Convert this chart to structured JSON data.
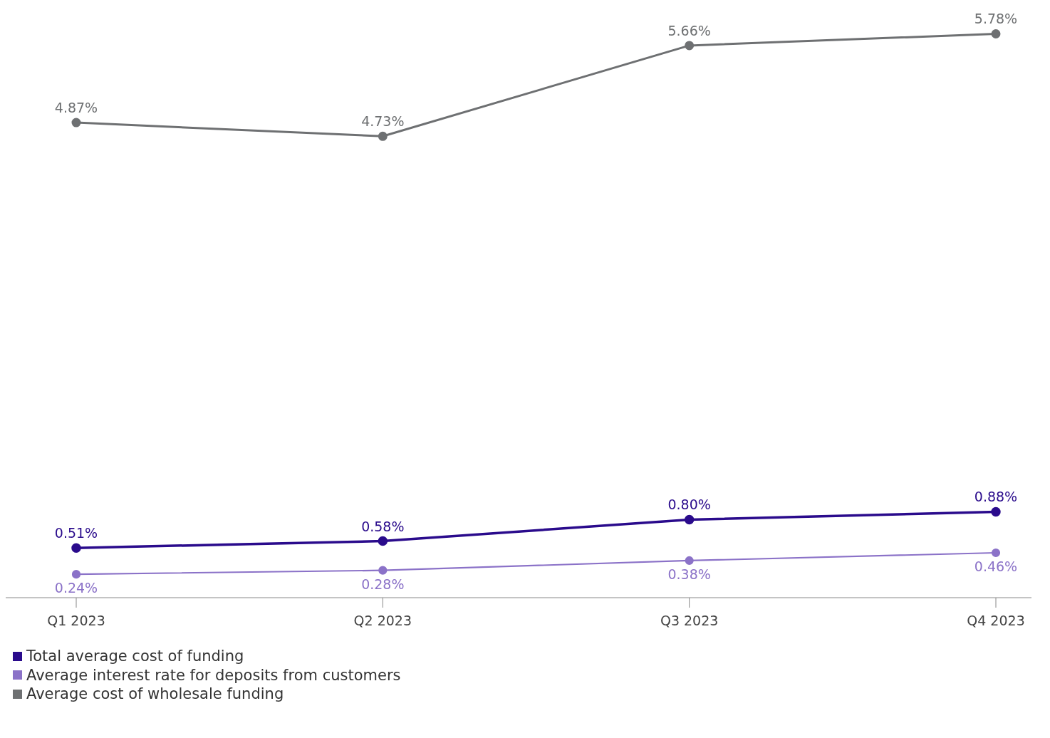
{
  "chart_data": {
    "type": "line",
    "categories": [
      "Q1 2023",
      "Q2 2023",
      "Q3 2023",
      "Q4 2023"
    ],
    "series": [
      {
        "name": "Total average cost of funding",
        "color": "#2a0b8c",
        "values": [
          0.51,
          0.58,
          0.8,
          0.88
        ],
        "value_labels": [
          "0.51%",
          "0.58%",
          "0.80%",
          "0.88%"
        ]
      },
      {
        "name": "Average interest rate for deposits from customers",
        "color": "#8b72c8",
        "values": [
          0.24,
          0.28,
          0.38,
          0.46
        ],
        "value_labels": [
          "0.24%",
          "0.28%",
          "0.38%",
          "0.46%"
        ]
      },
      {
        "name": "Average cost of wholesale funding",
        "color": "#6e7072",
        "values": [
          4.87,
          4.73,
          5.66,
          5.78
        ],
        "value_labels": [
          "4.87%",
          "4.73%",
          "5.66%",
          "5.78%"
        ]
      }
    ],
    "legend": "bottom left",
    "marker": "circle",
    "line_style": "solid",
    "grid": false
  }
}
